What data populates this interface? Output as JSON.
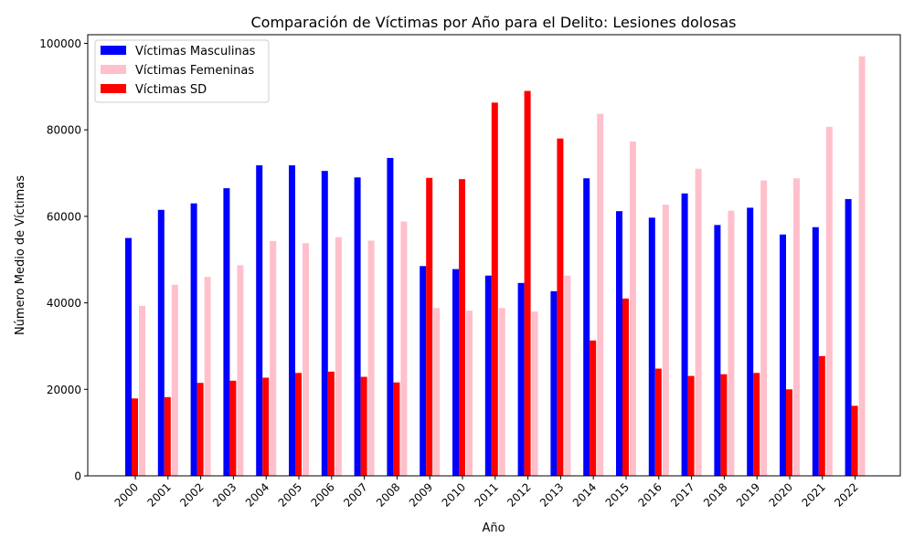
{
  "chart_data": {
    "type": "bar",
    "title": "Comparación de Víctimas por Año para el Delito: Lesiones dolosas",
    "xlabel": "Año",
    "ylabel": "Número Medio de Víctimas",
    "ylim": [
      0,
      102000
    ],
    "yticks": [
      0,
      20000,
      40000,
      60000,
      80000,
      100000
    ],
    "grid": false,
    "legend_position": "top-left",
    "categories": [
      "2000",
      "2001",
      "2002",
      "2003",
      "2004",
      "2005",
      "2006",
      "2007",
      "2008",
      "2009",
      "2010",
      "2011",
      "2012",
      "2013",
      "2014",
      "2015",
      "2016",
      "2017",
      "2018",
      "2019",
      "2020",
      "2021",
      "2022"
    ],
    "series": [
      {
        "name": "Víctimas Masculinas",
        "color": "#0000ff",
        "values": [
          55000,
          61500,
          63000,
          66500,
          71800,
          71800,
          70500,
          69000,
          73500,
          48500,
          47800,
          46300,
          44600,
          42700,
          68800,
          61200,
          59700,
          65300,
          58000,
          62000,
          55800,
          57500,
          64000
        ]
      },
      {
        "name": "Víctimas Femeninas",
        "color": "#ffc0cb",
        "values": [
          39300,
          44200,
          46000,
          48700,
          54300,
          53800,
          55200,
          54400,
          58800,
          38800,
          38200,
          38800,
          38000,
          46300,
          83700,
          77300,
          62700,
          71000,
          61300,
          68300,
          68800,
          80700,
          97000
        ]
      },
      {
        "name": "Víctimas SD",
        "color": "#ff0000",
        "values": [
          17900,
          18200,
          21500,
          22000,
          22700,
          23800,
          24100,
          22900,
          21600,
          68900,
          68600,
          86300,
          89000,
          78000,
          31300,
          41000,
          24800,
          23100,
          23500,
          23800,
          20000,
          27700,
          16200
        ]
      }
    ]
  }
}
